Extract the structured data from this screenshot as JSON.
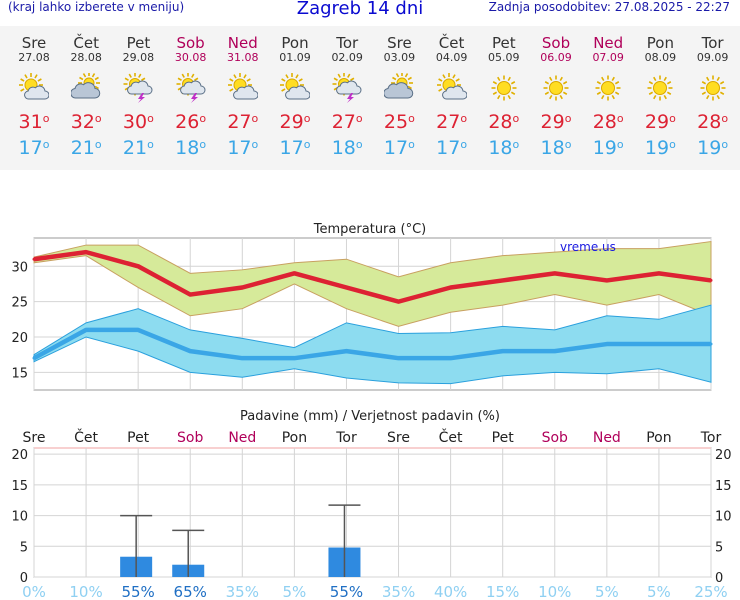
{
  "header": {
    "hint": "(kraj lahko izberete v meniju)",
    "title": "Zagreb 14 dni",
    "updated": "Zadnja posodobitev: 27.08.2025 - 22:27"
  },
  "forecast": [
    {
      "day": "Sre",
      "date": "27.08",
      "weekend": false,
      "icon": "partly-cloudy-icon",
      "max": "31",
      "min": "17"
    },
    {
      "day": "Čet",
      "date": "28.08",
      "weekend": false,
      "icon": "cloudy-sun-icon",
      "max": "32",
      "min": "21"
    },
    {
      "day": "Pet",
      "date": "29.08",
      "weekend": false,
      "icon": "thunderstorm-icon",
      "max": "30",
      "min": "21"
    },
    {
      "day": "Sob",
      "date": "30.08",
      "weekend": true,
      "icon": "thunderstorm-icon",
      "max": "26",
      "min": "18"
    },
    {
      "day": "Ned",
      "date": "31.08",
      "weekend": true,
      "icon": "partly-cloudy-icon",
      "max": "27",
      "min": "17"
    },
    {
      "day": "Pon",
      "date": "01.09",
      "weekend": false,
      "icon": "partly-cloudy-icon",
      "max": "29",
      "min": "17"
    },
    {
      "day": "Tor",
      "date": "02.09",
      "weekend": false,
      "icon": "thunderstorm-icon",
      "max": "27",
      "min": "18"
    },
    {
      "day": "Sre",
      "date": "03.09",
      "weekend": false,
      "icon": "cloudy-sun-icon",
      "max": "25",
      "min": "17"
    },
    {
      "day": "Čet",
      "date": "04.09",
      "weekend": false,
      "icon": "partly-cloudy-icon",
      "max": "27",
      "min": "17"
    },
    {
      "day": "Pet",
      "date": "05.09",
      "weekend": false,
      "icon": "sun-icon",
      "max": "28",
      "min": "18"
    },
    {
      "day": "Sob",
      "date": "06.09",
      "weekend": true,
      "icon": "sun-icon",
      "max": "29",
      "min": "18"
    },
    {
      "day": "Ned",
      "date": "07.09",
      "weekend": true,
      "icon": "sun-icon",
      "max": "28",
      "min": "19"
    },
    {
      "day": "Pon",
      "date": "08.09",
      "weekend": false,
      "icon": "sun-icon",
      "max": "29",
      "min": "19"
    },
    {
      "day": "Tor",
      "date": "09.09",
      "weekend": false,
      "icon": "sun-icon",
      "max": "28",
      "min": "19"
    }
  ],
  "colors": {
    "max": "#dd2233",
    "min": "#3aa6e6",
    "weekend": "#b0005a",
    "maxBand": "#d6ea9a",
    "minBand": "#8ddcf0",
    "bar": "#2f8ae0",
    "prob": "#8fd0f2"
  },
  "chart_data": [
    {
      "type": "line",
      "title": "Temperatura (°C)",
      "watermark": "vreme.us",
      "ylim": [
        12.5,
        34
      ],
      "yticks": [
        15,
        20,
        25,
        30
      ],
      "categories": [
        "Sre",
        "Čet",
        "Pet",
        "Sob",
        "Ned",
        "Pon",
        "Tor",
        "Sre",
        "Čet",
        "Pet",
        "Sob",
        "Ned",
        "Pon",
        "Tor"
      ],
      "series": [
        {
          "role": "max",
          "values": [
            31,
            32,
            30,
            26,
            27,
            29,
            27,
            25,
            27,
            28,
            29,
            28,
            29,
            28
          ]
        },
        {
          "role": "max-upper",
          "values": [
            31.3,
            33,
            33,
            29,
            29.5,
            30.5,
            31,
            28.5,
            30.5,
            31.5,
            32,
            32.5,
            32.5,
            33.5
          ]
        },
        {
          "role": "max-lower",
          "values": [
            30.5,
            31.5,
            27,
            23,
            24,
            27.5,
            24,
            21.5,
            23.5,
            24.5,
            26,
            24.5,
            26,
            23
          ]
        },
        {
          "role": "min",
          "values": [
            17,
            21,
            21,
            18,
            17,
            17,
            18,
            17,
            17,
            18,
            18,
            19,
            19,
            19
          ]
        },
        {
          "role": "min-upper",
          "values": [
            17.5,
            22,
            24,
            21,
            19.8,
            18.5,
            22,
            20.5,
            20.6,
            21.5,
            21,
            23,
            22.5,
            24.5
          ]
        },
        {
          "role": "min-lower",
          "values": [
            16.5,
            20,
            18,
            15,
            14.3,
            15.5,
            14.2,
            13.5,
            13.4,
            14.5,
            15,
            14.8,
            15.5,
            13.6
          ]
        }
      ]
    },
    {
      "type": "bar",
      "title": "Padavine (mm) / Verjetnost padavin (%)",
      "ylim": [
        0,
        21
      ],
      "yticks": [
        0,
        5,
        10,
        15,
        20
      ],
      "categories": [
        "Sre",
        "Čet",
        "Pet",
        "Sob",
        "Ned",
        "Pon",
        "Tor",
        "Sre",
        "Čet",
        "Pet",
        "Sob",
        "Ned",
        "Pon",
        "Tor"
      ],
      "precip_mm": [
        0,
        0,
        3.3,
        2.0,
        0,
        0,
        4.8,
        0,
        0,
        0,
        0,
        0,
        0,
        0
      ],
      "precip_max_mm": [
        0,
        0,
        10.0,
        7.6,
        0,
        0,
        11.7,
        0,
        0,
        0,
        0,
        0,
        0,
        0
      ],
      "probability": [
        "0%",
        "10%",
        "55%",
        "65%",
        "35%",
        "5%",
        "55%",
        "35%",
        "40%",
        "15%",
        "10%",
        "5%",
        "5%",
        "25%"
      ]
    }
  ]
}
